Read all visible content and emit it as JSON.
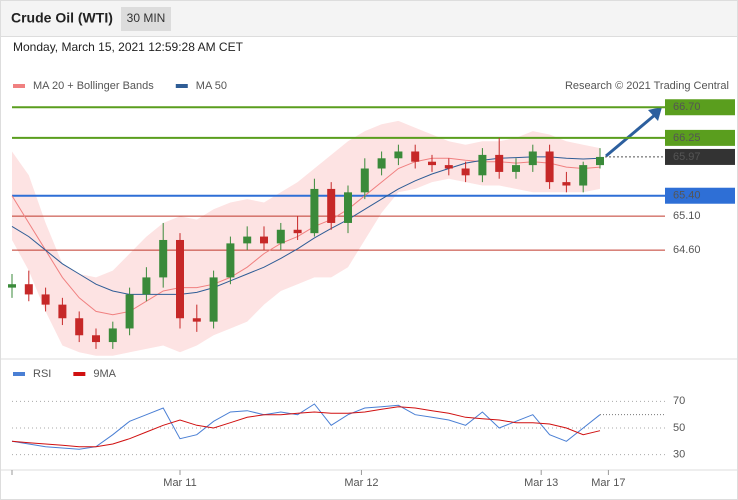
{
  "header": {
    "title": "Crude Oil (WTI)",
    "interval": "30 MIN",
    "timestamp": "Monday, March 15, 2021 12:59:28 AM CET"
  },
  "chart_data": [
    {
      "type": "candlestick",
      "source": "Research © 2021 Trading Central",
      "xlim": [
        0,
        35
      ],
      "ylim": [
        63.06,
        66.88
      ],
      "up_color": "#3a8a3a",
      "down_color": "#c62828",
      "open": [
        64.05,
        64.1,
        63.95,
        63.8,
        63.6,
        63.35,
        63.25,
        63.45,
        63.95,
        64.2,
        64.75,
        63.6,
        63.55,
        64.2,
        64.7,
        64.8,
        64.7,
        64.9,
        64.85,
        65.5,
        65.0,
        65.45,
        65.8,
        65.95,
        66.05,
        65.9,
        65.85,
        65.8,
        65.7,
        66.0,
        65.75,
        65.85,
        66.05,
        65.6,
        65.55,
        65.85
      ],
      "high": [
        64.25,
        64.3,
        64.05,
        63.9,
        63.7,
        63.45,
        63.55,
        64.05,
        64.35,
        65.0,
        64.85,
        63.8,
        64.3,
        64.8,
        64.95,
        64.95,
        65.0,
        65.1,
        65.65,
        65.6,
        65.55,
        65.95,
        66.05,
        66.15,
        66.15,
        66.0,
        65.95,
        65.9,
        66.1,
        66.25,
        65.95,
        66.15,
        66.15,
        65.75,
        65.9,
        66.1
      ],
      "low": [
        63.9,
        63.85,
        63.7,
        63.5,
        63.25,
        63.15,
        63.15,
        63.35,
        63.85,
        64.05,
        63.45,
        63.4,
        63.45,
        64.1,
        64.6,
        64.6,
        64.6,
        64.75,
        64.8,
        64.9,
        64.85,
        65.35,
        65.7,
        65.85,
        65.8,
        65.75,
        65.7,
        65.6,
        65.6,
        65.65,
        65.65,
        65.75,
        65.5,
        65.45,
        65.45,
        65.8
      ],
      "close": [
        64.1,
        63.95,
        63.8,
        63.6,
        63.35,
        63.25,
        63.45,
        63.95,
        64.2,
        64.75,
        63.6,
        63.55,
        64.2,
        64.7,
        64.8,
        64.7,
        64.9,
        64.85,
        65.5,
        65.0,
        65.45,
        65.8,
        65.95,
        66.05,
        65.9,
        65.85,
        65.8,
        65.7,
        66.0,
        65.75,
        65.85,
        66.05,
        65.6,
        65.55,
        65.85,
        65.97
      ],
      "series": [
        {
          "name": "MA 20 + Bollinger Bands",
          "color": "#f08080",
          "values": [
            65.4,
            65.0,
            64.6,
            64.2,
            63.9,
            63.7,
            63.65,
            63.7,
            63.85,
            64.0,
            64.05,
            64.05,
            64.1,
            64.2,
            64.35,
            64.55,
            64.7,
            64.8,
            64.95,
            65.05,
            65.2,
            65.4,
            65.6,
            65.8,
            65.9,
            65.95,
            65.95,
            65.92,
            65.9,
            65.9,
            65.88,
            65.9,
            65.88,
            65.82,
            65.8,
            65.82
          ]
        },
        {
          "name": "MA 50",
          "color": "#2f5d96",
          "values": [
            64.95,
            64.8,
            64.6,
            64.4,
            64.25,
            64.1,
            64.0,
            63.95,
            63.95,
            63.95,
            63.95,
            63.98,
            64.05,
            64.15,
            64.25,
            64.35,
            64.48,
            64.62,
            64.78,
            64.92,
            65.05,
            65.2,
            65.35,
            65.5,
            65.62,
            65.72,
            65.8,
            65.88,
            65.92,
            65.95,
            65.96,
            65.97,
            65.97,
            65.95,
            65.94,
            65.95
          ]
        }
      ],
      "band_color": "#fde3e3",
      "bollinger_upper": [
        66.05,
        65.7,
        65.0,
        64.4,
        64.25,
        64.2,
        64.3,
        64.55,
        64.8,
        65.0,
        65.1,
        65.05,
        65.2,
        65.3,
        65.35,
        65.3,
        65.45,
        65.6,
        65.8,
        66.0,
        66.2,
        66.35,
        66.45,
        66.5,
        66.4,
        66.3,
        66.2,
        66.15,
        66.2,
        66.2,
        66.25,
        66.35,
        66.3,
        66.2,
        66.15,
        66.1
      ],
      "bollinger_lower": [
        64.75,
        64.3,
        63.7,
        63.2,
        63.1,
        63.05,
        63.05,
        63.1,
        63.15,
        63.2,
        63.1,
        63.2,
        63.35,
        63.45,
        63.55,
        63.8,
        64.0,
        64.1,
        64.2,
        64.2,
        64.35,
        64.75,
        65.15,
        65.45,
        65.5,
        65.6,
        65.65,
        65.6,
        65.55,
        65.55,
        65.5,
        65.45,
        65.45,
        65.45,
        65.45,
        65.5
      ],
      "levels": [
        {
          "value": 66.7,
          "label": "66.70",
          "color": "#5a9e1e",
          "boxed": true
        },
        {
          "value": 66.25,
          "label": "66.25",
          "color": "#5a9e1e",
          "boxed": true
        },
        {
          "value": 65.97,
          "label": "65.97",
          "color": "#333333",
          "boxed": true,
          "dotted": true
        },
        {
          "value": 65.4,
          "label": "65.40",
          "color": "#2e6fd6",
          "boxed": true
        },
        {
          "value": 65.1,
          "label": "65.10",
          "color": "#c0392b",
          "boxed": false
        },
        {
          "value": 64.6,
          "label": "64.60",
          "color": "#c0392b",
          "boxed": false
        }
      ]
    },
    {
      "type": "line",
      "xlim": [
        0,
        35
      ],
      "ylim": [
        20,
        80
      ],
      "yticks": [
        70,
        50,
        30
      ],
      "xticks": [
        {
          "value": 10,
          "label": "Mar 11"
        },
        {
          "value": 20.8,
          "label": "Mar 12"
        },
        {
          "value": 31.5,
          "label": "Mar 13"
        },
        {
          "value": 35.5,
          "label": "Mar 17"
        }
      ],
      "series": [
        {
          "name": "RSI",
          "color": "#4a7fd4",
          "values": [
            40,
            38,
            36,
            35,
            34,
            36,
            45,
            55,
            60,
            65,
            42,
            45,
            55,
            62,
            63,
            60,
            62,
            60,
            68,
            52,
            60,
            65,
            66,
            67,
            60,
            58,
            56,
            52,
            62,
            50,
            55,
            60,
            45,
            40,
            50,
            60
          ]
        },
        {
          "name": "9MA",
          "color": "#d01010",
          "values": [
            40,
            39,
            38,
            37,
            36,
            36,
            38,
            42,
            47,
            52,
            56,
            52,
            50,
            54,
            58,
            60,
            60,
            61,
            62,
            61,
            61,
            62,
            64,
            66,
            65,
            63,
            61,
            58,
            57,
            56,
            54,
            54,
            53,
            50,
            45,
            48
          ]
        }
      ]
    }
  ]
}
